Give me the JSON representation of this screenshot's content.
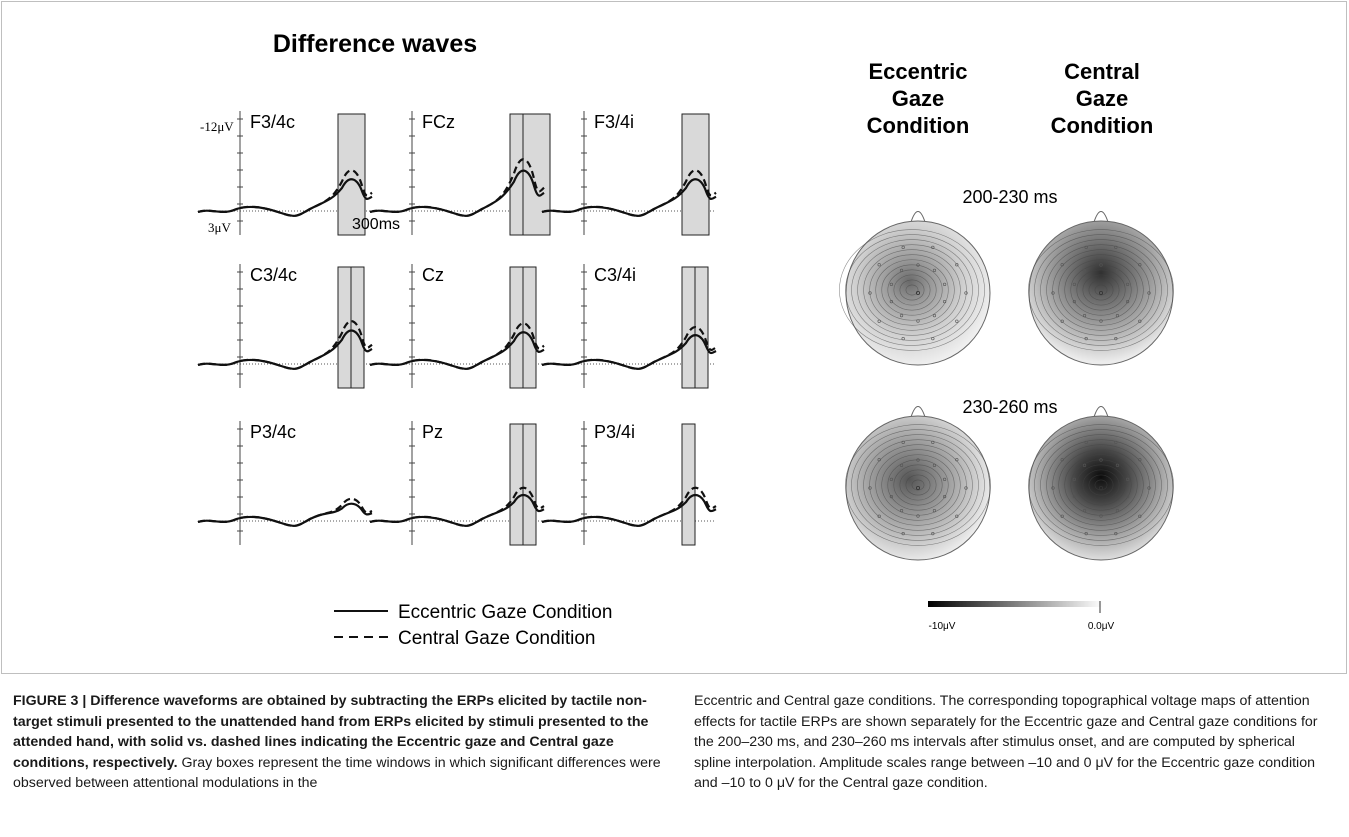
{
  "figure": {
    "title": "Difference waves",
    "axis": {
      "top_label": "-12μV",
      "bottom_label": "3μV",
      "time_label": "300ms"
    },
    "legend": [
      {
        "label": "Eccentric Gaze Condition",
        "style": "solid"
      },
      {
        "label": "Central Gaze Condition",
        "style": "dashed"
      }
    ],
    "electrodes": [
      {
        "label": "F3/4c",
        "windows": 1
      },
      {
        "label": "FCz",
        "windows": 2
      },
      {
        "label": "F3/4i",
        "windows": 1
      },
      {
        "label": "C3/4c",
        "windows": 2
      },
      {
        "label": "Cz",
        "windows": 2
      },
      {
        "label": "C3/4i",
        "windows": 2
      },
      {
        "label": "P3/4c",
        "windows": 0
      },
      {
        "label": "Pz",
        "windows": 2
      },
      {
        "label": "P3/4i",
        "windows": 1
      }
    ],
    "maps": {
      "col_headers": [
        [
          "Eccentric",
          "Gaze",
          "Condition"
        ],
        [
          "Central",
          "Gaze",
          "Condition"
        ]
      ],
      "intervals": [
        "200-230 ms",
        "230-260 ms"
      ],
      "scale_min": "-10μV",
      "scale_max": "0.0μV"
    },
    "colors": {
      "box_fill": "#d9d9d9",
      "line": "#111111",
      "border": "#bfbfbf"
    }
  },
  "caption": {
    "label": "FIGURE 3 | ",
    "bold": "Difference waveforms are obtained by subtracting the ERPs elicited by tactile non-target stimuli presented to the unattended hand from ERPs elicited by stimuli presented to the attended hand, with solid vs. dashed lines indicating the Eccentric gaze and Central gaze conditions, respectively.",
    "text_left": " Gray boxes represent the time windows in which significant differences were observed between attentional modulations in the",
    "text_right": "Eccentric and Central gaze conditions. The corresponding topographical voltage maps of attention effects for tactile ERPs are shown separately for the Eccentric gaze and Central gaze conditions for the 200–230 ms, and 230–260 ms intervals after stimulus onset, and are computed by spherical spline interpolation. Amplitude scales range between –10 and 0 μV for the Eccentric gaze condition and –10 to 0 μV for the Central gaze condition."
  }
}
